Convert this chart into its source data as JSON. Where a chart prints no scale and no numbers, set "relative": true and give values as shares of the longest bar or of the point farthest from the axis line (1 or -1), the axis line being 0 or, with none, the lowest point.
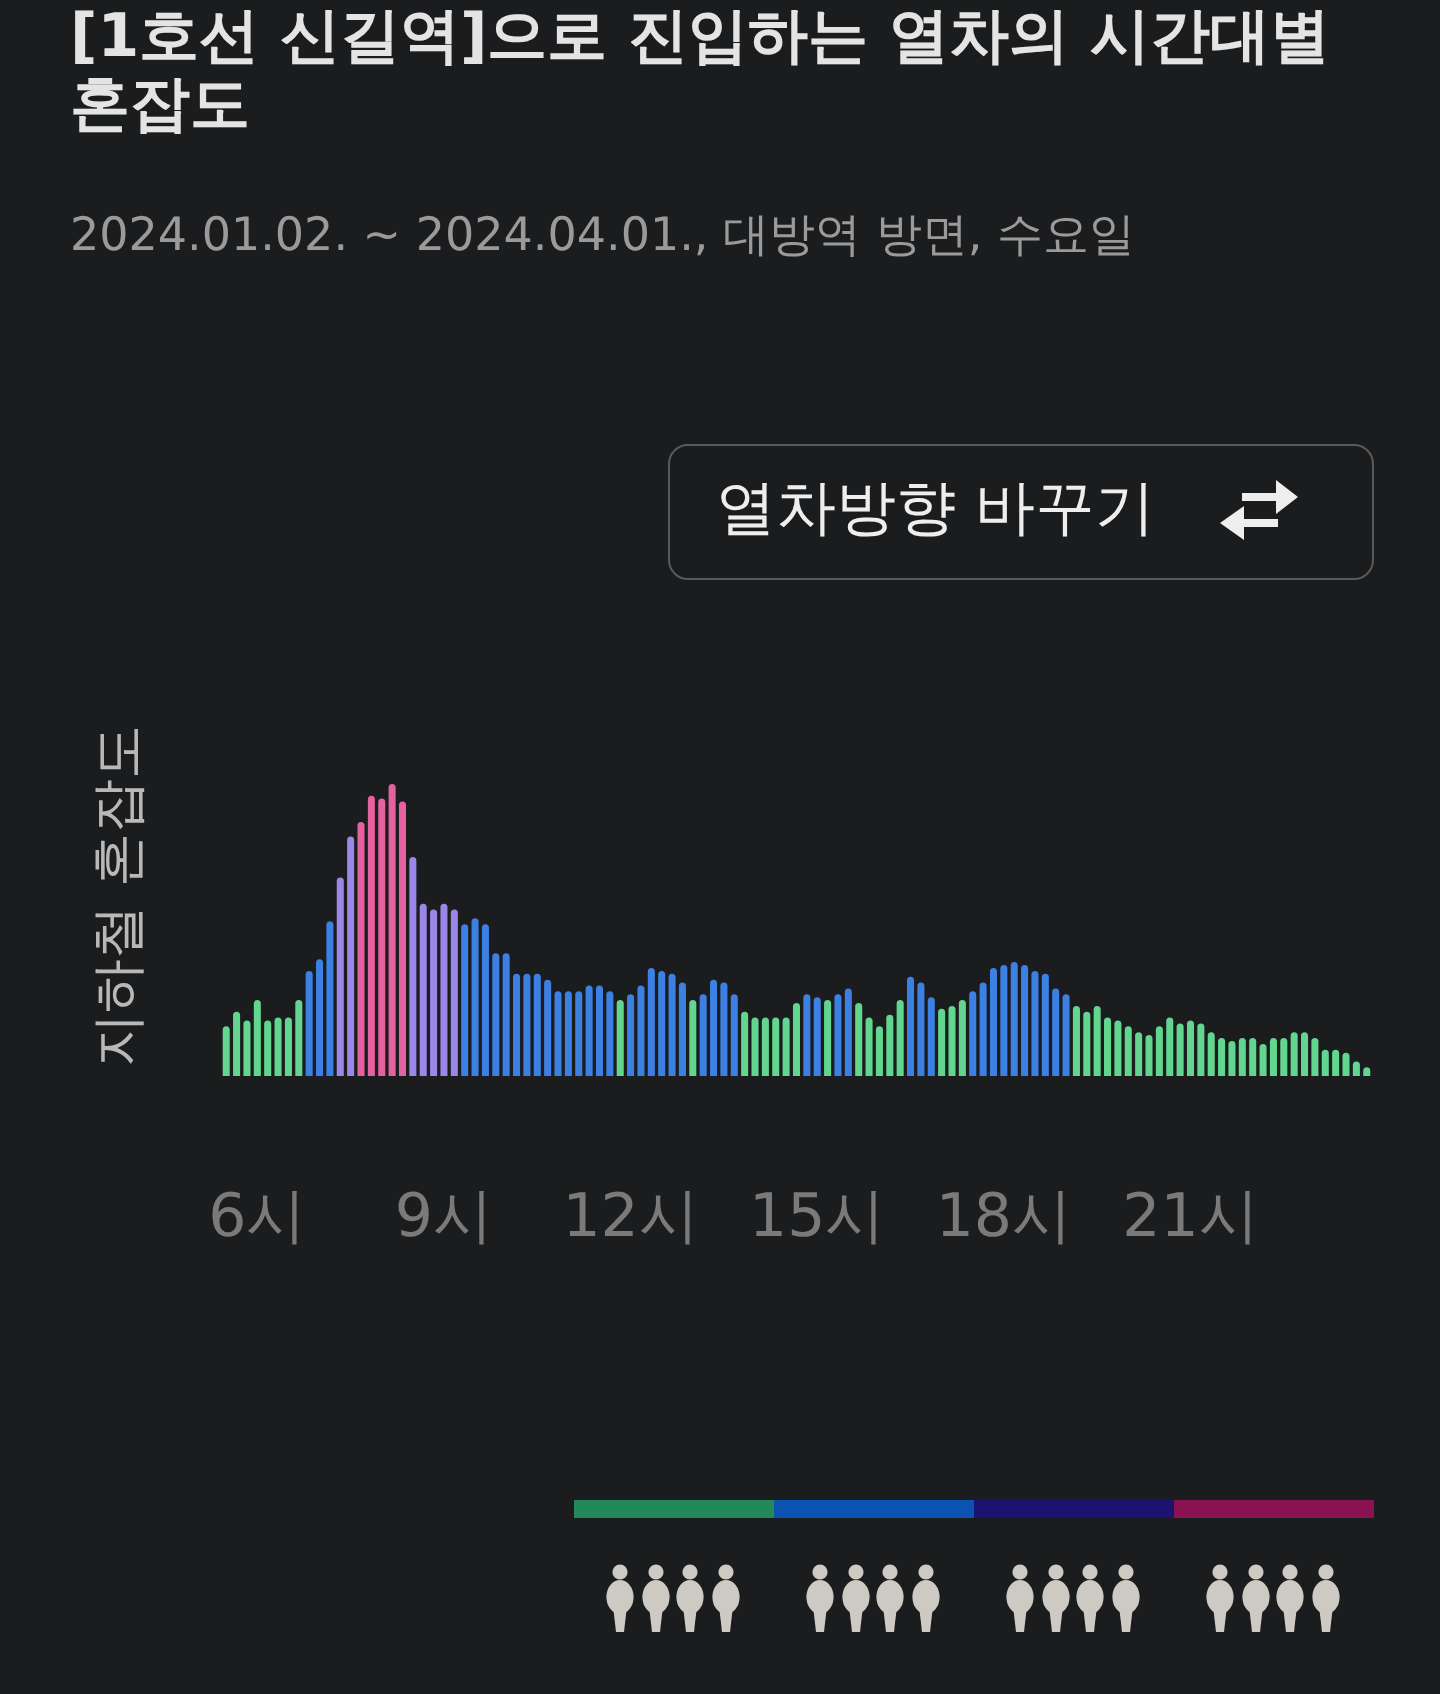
{
  "chart_data": {
    "type": "bar",
    "title": "[1호선 신길역]으로 진입하는 열차의 시간대별 혼잡도",
    "subtitle": "2024.01.02. ~ 2024.04.01., 대방역 방면, 수요일",
    "ylabel": "지하철 혼잡도",
    "annotations": [
      "열차방향 바꾸기"
    ],
    "relative": true,
    "x": [
      5.5,
      5.6667,
      5.8333,
      6,
      6.1667,
      6.3333,
      6.5,
      6.6667,
      6.8333,
      7,
      7.1667,
      7.3333,
      7.5,
      7.6667,
      7.8333,
      8,
      8.1667,
      8.3333,
      8.5,
      8.6667,
      8.8333,
      9,
      9.1667,
      9.3333,
      9.5,
      9.6667,
      9.8333,
      10,
      10.1667,
      10.3333,
      10.5,
      10.6667,
      10.8333,
      11,
      11.1667,
      11.3333,
      11.5,
      11.6667,
      11.8333,
      12,
      12.1667,
      12.3333,
      12.5,
      12.6667,
      12.8333,
      13,
      13.1667,
      13.3333,
      13.5,
      13.6667,
      13.8333,
      14,
      14.1667,
      14.3333,
      14.5,
      14.6667,
      14.8333,
      15,
      15.1667,
      15.3333,
      15.5,
      15.6667,
      15.8333,
      16,
      16.1667,
      16.3333,
      16.5,
      16.6667,
      16.8333,
      17,
      17.1667,
      17.3333,
      17.5,
      17.6667,
      17.8333,
      18,
      18.1667,
      18.3333,
      18.5,
      18.6667,
      18.8333,
      19,
      19.1667,
      19.3333,
      19.5,
      19.6667,
      19.8333,
      20,
      20.1667,
      20.3333,
      20.5,
      20.6667,
      20.8333,
      21,
      21.1667,
      21.3333,
      21.5,
      21.6667,
      21.8333,
      22,
      22.1667,
      22.3333,
      22.5,
      22.6667,
      22.8333,
      23,
      23.1667,
      23.3333,
      23.5,
      23.6667,
      23.8333
    ],
    "values": [
      0.17,
      0.22,
      0.19,
      0.26,
      0.19,
      0.2,
      0.2,
      0.26,
      0.36,
      0.4,
      0.53,
      0.68,
      0.82,
      0.87,
      0.96,
      0.95,
      1,
      0.94,
      0.75,
      0.59,
      0.57,
      0.59,
      0.57,
      0.52,
      0.54,
      0.52,
      0.42,
      0.42,
      0.35,
      0.35,
      0.35,
      0.33,
      0.29,
      0.29,
      0.29,
      0.31,
      0.31,
      0.29,
      0.26,
      0.28,
      0.31,
      0.37,
      0.36,
      0.35,
      0.32,
      0.26,
      0.28,
      0.33,
      0.32,
      0.28,
      0.22,
      0.2,
      0.2,
      0.2,
      0.2,
      0.25,
      0.28,
      0.27,
      0.26,
      0.28,
      0.3,
      0.25,
      0.2,
      0.17,
      0.21,
      0.26,
      0.34,
      0.32,
      0.27,
      0.23,
      0.24,
      0.26,
      0.29,
      0.32,
      0.37,
      0.38,
      0.39,
      0.38,
      0.36,
      0.35,
      0.3,
      0.28,
      0.24,
      0.22,
      0.24,
      0.2,
      0.19,
      0.17,
      0.15,
      0.14,
      0.17,
      0.2,
      0.18,
      0.19,
      0.18,
      0.15,
      0.13,
      0.12,
      0.13,
      0.13,
      0.11,
      0.13,
      0.13,
      0.15,
      0.15,
      0.13,
      0.09,
      0.09,
      0.08,
      0.05,
      0.03
    ],
    "colors": [
      "#62d58e",
      "#62d58e",
      "#62d58e",
      "#62d58e",
      "#62d58e",
      "#62d58e",
      "#62d58e",
      "#62d58e",
      "#3d80e3",
      "#3d80e3",
      "#3d80e3",
      "#9b87e8",
      "#9b87e8",
      "#e3629f",
      "#e3629f",
      "#e3629f",
      "#e3629f",
      "#e3629f",
      "#9b87e8",
      "#9b87e8",
      "#9b87e8",
      "#9b87e8",
      "#9b87e8",
      "#3d80e3",
      "#3d80e3",
      "#3d80e3",
      "#3d80e3",
      "#3d80e3",
      "#3d80e3",
      "#3d80e3",
      "#3d80e3",
      "#3d80e3",
      "#3d80e3",
      "#3d80e3",
      "#3d80e3",
      "#3d80e3",
      "#3d80e3",
      "#3d80e3",
      "#62d58e",
      "#3d80e3",
      "#3d80e3",
      "#3d80e3",
      "#3d80e3",
      "#3d80e3",
      "#3d80e3",
      "#62d58e",
      "#3d80e3",
      "#3d80e3",
      "#3d80e3",
      "#3d80e3",
      "#62d58e",
      "#62d58e",
      "#62d58e",
      "#62d58e",
      "#62d58e",
      "#62d58e",
      "#3d80e3",
      "#3d80e3",
      "#62d58e",
      "#3d80e3",
      "#3d80e3",
      "#62d58e",
      "#62d58e",
      "#62d58e",
      "#62d58e",
      "#62d58e",
      "#3d80e3",
      "#3d80e3",
      "#3d80e3",
      "#62d58e",
      "#62d58e",
      "#62d58e",
      "#3d80e3",
      "#3d80e3",
      "#3d80e3",
      "#3d80e3",
      "#3d80e3",
      "#3d80e3",
      "#3d80e3",
      "#3d80e3",
      "#3d80e3",
      "#3d80e3",
      "#62d58e",
      "#62d58e",
      "#62d58e",
      "#62d58e",
      "#62d58e",
      "#62d58e",
      "#62d58e",
      "#62d58e",
      "#62d58e",
      "#62d58e",
      "#62d58e",
      "#62d58e",
      "#62d58e",
      "#62d58e",
      "#62d58e",
      "#62d58e",
      "#62d58e",
      "#62d58e",
      "#62d58e",
      "#62d58e",
      "#62d58e",
      "#62d58e",
      "#62d58e",
      "#62d58e",
      "#62d58e",
      "#62d58e",
      "#62d58e",
      "#62d58e",
      "#62d58e"
    ],
    "xlim": [
      5.4,
      23.95
    ],
    "xticks": [
      {
        "value": 6,
        "label": "6시"
      },
      {
        "value": 9,
        "label": "9시"
      },
      {
        "value": 12,
        "label": "12시"
      },
      {
        "value": 15,
        "label": "15시"
      },
      {
        "value": 18,
        "label": "18시"
      },
      {
        "value": 21,
        "label": "21시"
      }
    ]
  }
}
